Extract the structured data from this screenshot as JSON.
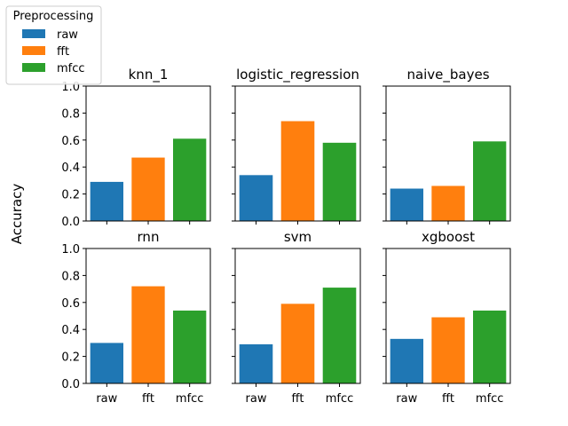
{
  "figure": {
    "ylabel": "Accuracy"
  },
  "legend": {
    "title": "Preprocessing",
    "entries": [
      {
        "label": "raw",
        "color": "#1f77b4"
      },
      {
        "label": "fft",
        "color": "#ff7f0e"
      },
      {
        "label": "mfcc",
        "color": "#2ca02c"
      }
    ]
  },
  "chart_data": [
    {
      "type": "bar",
      "title": "knn_1",
      "categories": [
        "raw",
        "fft",
        "mfcc"
      ],
      "values": [
        0.29,
        0.47,
        0.61
      ],
      "ylim": [
        0,
        1
      ],
      "yticks": [
        "0.0",
        "0.2",
        "0.4",
        "0.6",
        "0.8",
        "1.0"
      ],
      "colors": [
        "#1f77b4",
        "#ff7f0e",
        "#2ca02c"
      ]
    },
    {
      "type": "bar",
      "title": "logistic_regression",
      "categories": [
        "raw",
        "fft",
        "mfcc"
      ],
      "values": [
        0.34,
        0.74,
        0.58
      ],
      "ylim": [
        0,
        1
      ],
      "colors": [
        "#1f77b4",
        "#ff7f0e",
        "#2ca02c"
      ]
    },
    {
      "type": "bar",
      "title": "naive_bayes",
      "categories": [
        "raw",
        "fft",
        "mfcc"
      ],
      "values": [
        0.24,
        0.26,
        0.59
      ],
      "ylim": [
        0,
        1
      ],
      "colors": [
        "#1f77b4",
        "#ff7f0e",
        "#2ca02c"
      ]
    },
    {
      "type": "bar",
      "title": "rnn",
      "categories": [
        "raw",
        "fft",
        "mfcc"
      ],
      "values": [
        0.3,
        0.72,
        0.54
      ],
      "ylim": [
        0,
        1
      ],
      "yticks": [
        "0.0",
        "0.2",
        "0.4",
        "0.6",
        "0.8",
        "1.0"
      ],
      "xticks": [
        "raw",
        "fft",
        "mfcc"
      ],
      "colors": [
        "#1f77b4",
        "#ff7f0e",
        "#2ca02c"
      ]
    },
    {
      "type": "bar",
      "title": "svm",
      "categories": [
        "raw",
        "fft",
        "mfcc"
      ],
      "values": [
        0.29,
        0.59,
        0.71
      ],
      "ylim": [
        0,
        1
      ],
      "xticks": [
        "raw",
        "fft",
        "mfcc"
      ],
      "colors": [
        "#1f77b4",
        "#ff7f0e",
        "#2ca02c"
      ]
    },
    {
      "type": "bar",
      "title": "xgboost",
      "categories": [
        "raw",
        "fft",
        "mfcc"
      ],
      "values": [
        0.33,
        0.49,
        0.54
      ],
      "ylim": [
        0,
        1
      ],
      "xticks": [
        "raw",
        "fft",
        "mfcc"
      ],
      "colors": [
        "#1f77b4",
        "#ff7f0e",
        "#2ca02c"
      ]
    }
  ]
}
